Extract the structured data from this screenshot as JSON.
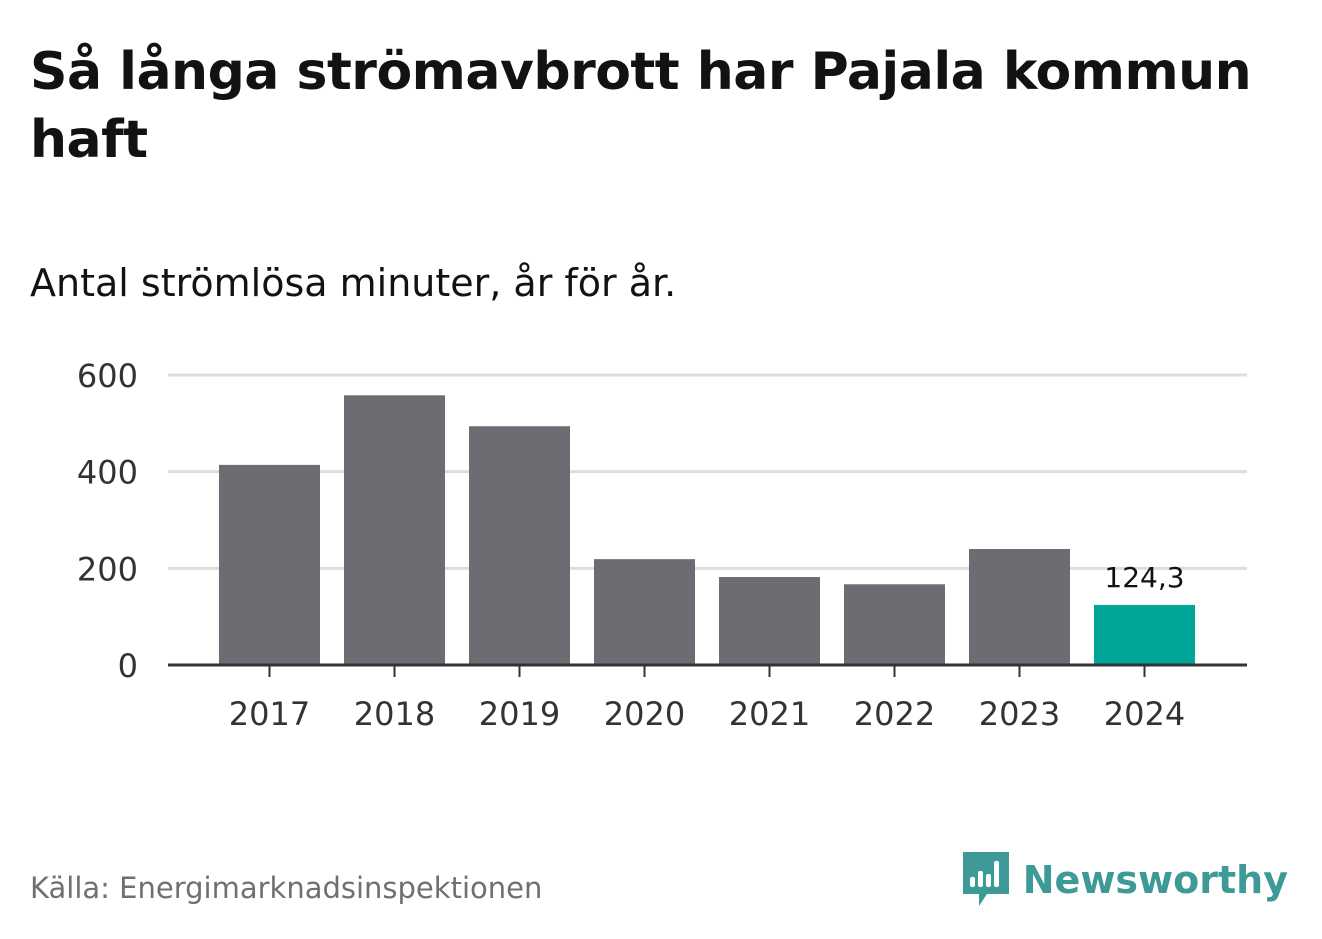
{
  "title": "Så långa strömavbrott har Pajala kommun haft",
  "subtitle": "Antal strömlösa minuter, år för år.",
  "source": "Källa: Energimarknadsinspektionen",
  "brand": {
    "name": "Newsworthy",
    "icon": "newsworthy-logo-icon"
  },
  "colors": {
    "bar": "#6d6c73",
    "highlight": "#00a69a",
    "grid": "#dddddd",
    "axis": "#333333",
    "text": "#121212",
    "brand": "#3e9a96"
  },
  "chart_data": {
    "type": "bar",
    "title": "Så långa strömavbrott har Pajala kommun haft",
    "subtitle": "Antal strömlösa minuter, år för år.",
    "xlabel": "",
    "ylabel": "",
    "categories": [
      "2017",
      "2018",
      "2019",
      "2020",
      "2021",
      "2022",
      "2023",
      "2024"
    ],
    "values": [
      414,
      558,
      494,
      219,
      182,
      167,
      240,
      124.3
    ],
    "highlight_index": 7,
    "data_labels": {
      "7": "124,3"
    },
    "ylim": [
      0,
      600
    ],
    "yticks": [
      0,
      200,
      400,
      600
    ],
    "grid": true
  }
}
